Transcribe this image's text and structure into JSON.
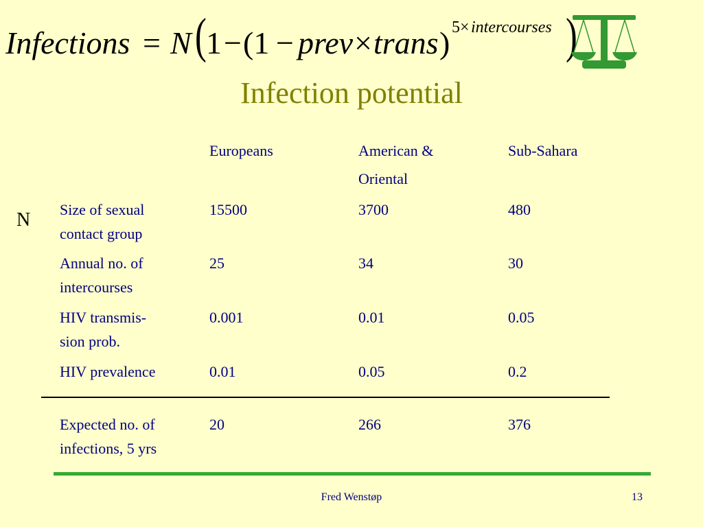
{
  "formula": {
    "lhs": "Infections",
    "equals": "=",
    "N": "N",
    "open_big_paren": "(",
    "one": "1",
    "minus": "−",
    "open_paren": "(1",
    "minus2": "−",
    "prev": "prev",
    "times": "×",
    "trans": "trans",
    "close_paren": ")",
    "exponent_five": "5×",
    "exponent_word": "intercourses",
    "close_big_paren": ")"
  },
  "icon": {
    "name": "scales-icon",
    "color": "#339933"
  },
  "title": "Infection potential",
  "table": {
    "headers": [
      "",
      "Europeans",
      "American &\nOriental",
      "Sub-Sahara"
    ],
    "header_line1": [
      "Europeans",
      "American &",
      "Sub-Sahara"
    ],
    "header_line2": [
      "",
      "Oriental",
      ""
    ],
    "side_label": "N",
    "rows": [
      {
        "label_line1": "Size of sexual",
        "label_line2": "contact group",
        "values": [
          "15500",
          "3700",
          "480"
        ]
      },
      {
        "label_line1": "Annual no. of",
        "label_line2": "intercourses",
        "values": [
          "25",
          "34",
          "30"
        ]
      },
      {
        "label_line1": "HIV transmis-",
        "label_line2": "sion prob.",
        "values": [
          "0.001",
          "0.01",
          "0.05"
        ]
      },
      {
        "label_line1": "HIV prevalence",
        "label_line2": "",
        "values": [
          "0.01",
          "0.05",
          "0.2"
        ]
      }
    ],
    "result": {
      "label_line1": "Expected no. of",
      "label_line2": "infections, 5 yrs",
      "values": [
        "20",
        "266",
        "376"
      ]
    }
  },
  "footer": {
    "author": "Fred Wenstøp",
    "page_number": "13"
  },
  "colors": {
    "background": "#ffffcc",
    "title": "#808000",
    "text": "#000080",
    "accent_line": "#33aa33"
  }
}
